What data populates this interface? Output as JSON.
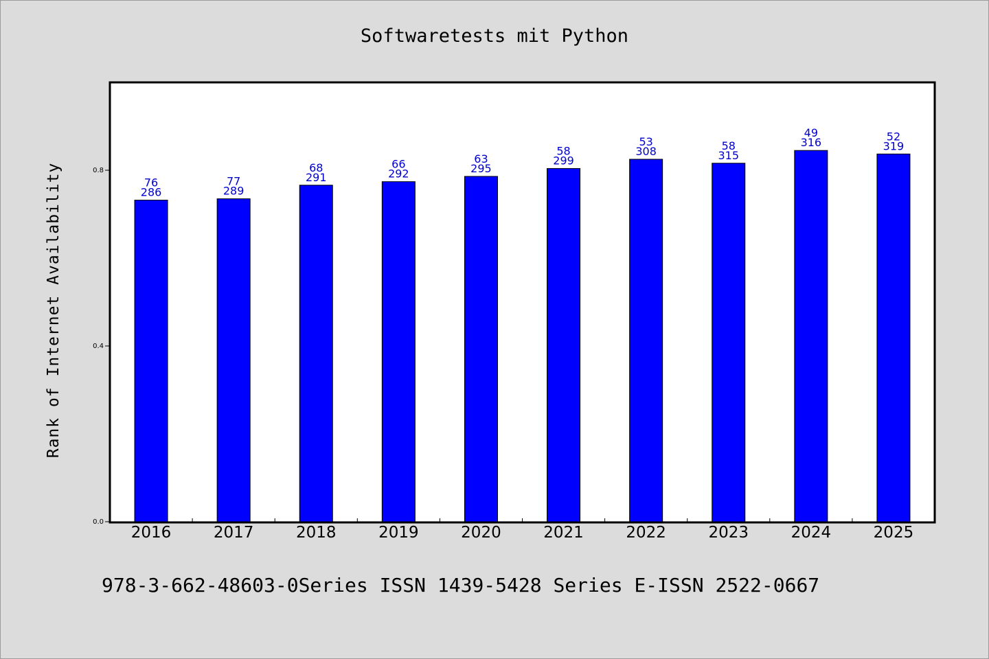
{
  "chart_data": {
    "type": "bar",
    "title": "Softwaretests mit Python",
    "xlabel": "",
    "ylabel": "Rank of Internet Availability",
    "ylim": [
      0.0,
      1.0
    ],
    "yticks": [
      "0.0",
      "0.4",
      "0.8"
    ],
    "categories": [
      "2016",
      "2017",
      "2018",
      "2019",
      "2020",
      "2021",
      "2022",
      "2023",
      "2024",
      "2025"
    ],
    "values": [
      0.732,
      0.735,
      0.766,
      0.774,
      0.786,
      0.804,
      0.825,
      0.816,
      0.845,
      0.837
    ],
    "label_top": [
      "76",
      "77",
      "68",
      "66",
      "63",
      "58",
      "53",
      "58",
      "49",
      "52"
    ],
    "label_bottom": [
      "286",
      "289",
      "291",
      "292",
      "295",
      "299",
      "308",
      "315",
      "316",
      "319"
    ],
    "bar_color": "#0000ff",
    "label_color": "#0000cc",
    "grid": false,
    "footer": "978-3-662-48603-0Series ISSN 1439-5428 Series E-ISSN 2522-0667"
  }
}
